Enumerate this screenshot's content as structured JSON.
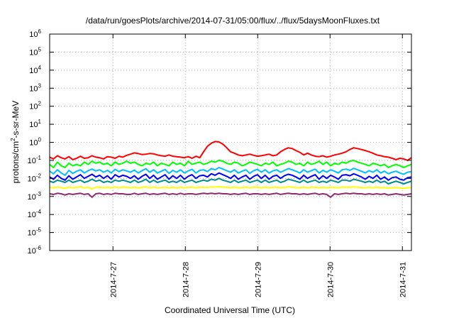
{
  "chart_data": {
    "type": "line",
    "title": "/data/run/goesPlots/archive/2014-07-31/05:00/flux/../flux/5daysMoonFluxes.txt",
    "xlabel": "Coordinated Universal Time (UTC)",
    "ylabel": {
      "prefix": "protons/cm",
      "sup": "2",
      "suffix": "-s-sr-MeV"
    },
    "yscale": "log",
    "ylim": [
      1e-06,
      1000000.0
    ],
    "y_ticks": [
      {
        "base": "10",
        "exp": "-6",
        "value": 1e-06
      },
      {
        "base": "10",
        "exp": "-5",
        "value": 1e-05
      },
      {
        "base": "10",
        "exp": "-4",
        "value": 0.0001
      },
      {
        "base": "10",
        "exp": "-3",
        "value": 0.001
      },
      {
        "base": "10",
        "exp": "-2",
        "value": 0.01
      },
      {
        "base": "10",
        "exp": "-1",
        "value": 0.1
      },
      {
        "base": "10",
        "exp": "0",
        "value": 1
      },
      {
        "base": "10",
        "exp": "1",
        "value": 10
      },
      {
        "base": "10",
        "exp": "2",
        "value": 100
      },
      {
        "base": "10",
        "exp": "3",
        "value": 1000
      },
      {
        "base": "10",
        "exp": "4",
        "value": 10000
      },
      {
        "base": "10",
        "exp": "5",
        "value": 100000
      },
      {
        "base": "10",
        "exp": "6",
        "value": 1000000
      }
    ],
    "xlim": [
      "2014-07-26 03:00",
      "2014-07-31 03:00"
    ],
    "x_ticks": [
      "2014-7-27",
      "2014-7-28",
      "2014-7-29",
      "2014-7-30",
      "2014-7-31"
    ],
    "grid": true,
    "series": [
      {
        "color": "#ff0000",
        "values": [
          0.15,
          0.12,
          0.18,
          0.14,
          0.12,
          0.16,
          0.11,
          0.13,
          0.17,
          0.13,
          0.14,
          0.18,
          0.15,
          0.14,
          0.12,
          0.16,
          0.15,
          0.13,
          0.17,
          0.15,
          0.19,
          0.22,
          0.26,
          0.24,
          0.21,
          0.22,
          0.24,
          0.23,
          0.2,
          0.18,
          0.17,
          0.2,
          0.17,
          0.16,
          0.15,
          0.14,
          0.16,
          0.13,
          0.17,
          0.14,
          0.3,
          0.6,
          0.9,
          1.1,
          1.05,
          0.8,
          0.5,
          0.3,
          0.25,
          0.2,
          0.18,
          0.2,
          0.22,
          0.19,
          0.17,
          0.18,
          0.2,
          0.22,
          0.18,
          0.2,
          0.3,
          0.4,
          0.5,
          0.45,
          0.35,
          0.28,
          0.2,
          0.25,
          0.2,
          0.17,
          0.16,
          0.18,
          0.15,
          0.17,
          0.2,
          0.22,
          0.25,
          0.3,
          0.4,
          0.5,
          0.45,
          0.4,
          0.35,
          0.3,
          0.25,
          0.2,
          0.18,
          0.16,
          0.15,
          0.13,
          0.11,
          0.13,
          0.12,
          0.1,
          0.14
        ]
      },
      {
        "color": "#00ff00",
        "values": [
          0.06,
          0.04,
          0.08,
          0.05,
          0.04,
          0.07,
          0.05,
          0.06,
          0.05,
          0.08,
          0.06,
          0.09,
          0.07,
          0.08,
          0.06,
          0.07,
          0.05,
          0.08,
          0.06,
          0.07,
          0.09,
          0.07,
          0.08,
          0.06,
          0.05,
          0.07,
          0.06,
          0.08,
          0.05,
          0.07,
          0.06,
          0.05,
          0.08,
          0.06,
          0.07,
          0.05,
          0.09,
          0.06,
          0.07,
          0.08,
          0.06,
          0.07,
          0.09,
          0.08,
          0.1,
          0.09,
          0.07,
          0.06,
          0.08,
          0.07,
          0.05,
          0.06,
          0.08,
          0.07,
          0.06,
          0.05,
          0.07,
          0.06,
          0.08,
          0.05,
          0.06,
          0.07,
          0.09,
          0.08,
          0.06,
          0.07,
          0.05,
          0.08,
          0.06,
          0.07,
          0.09,
          0.06,
          0.08,
          0.05,
          0.07,
          0.06,
          0.08,
          0.07,
          0.09,
          0.1,
          0.08,
          0.07,
          0.06,
          0.05,
          0.07,
          0.06,
          0.05,
          0.06,
          0.04,
          0.05,
          0.06,
          0.05,
          0.04,
          0.05,
          0.06
        ]
      },
      {
        "color": "#00c0ff",
        "values": [
          0.025,
          0.018,
          0.03,
          0.02,
          0.015,
          0.028,
          0.019,
          0.025,
          0.03,
          0.02,
          0.027,
          0.033,
          0.026,
          0.03,
          0.022,
          0.028,
          0.02,
          0.032,
          0.024,
          0.03,
          0.026,
          0.022,
          0.029,
          0.02,
          0.027,
          0.034,
          0.022,
          0.03,
          0.02,
          0.025,
          0.031,
          0.019,
          0.028,
          0.022,
          0.03,
          0.02,
          0.026,
          0.032,
          0.02,
          0.028,
          0.03,
          0.024,
          0.035,
          0.03,
          0.04,
          0.033,
          0.027,
          0.022,
          0.03,
          0.02,
          0.025,
          0.03,
          0.019,
          0.027,
          0.032,
          0.022,
          0.03,
          0.02,
          0.026,
          0.03,
          0.022,
          0.028,
          0.035,
          0.03,
          0.025,
          0.02,
          0.03,
          0.022,
          0.027,
          0.033,
          0.02,
          0.028,
          0.022,
          0.03,
          0.025,
          0.02,
          0.03,
          0.033,
          0.028,
          0.036,
          0.03,
          0.025,
          0.02,
          0.027,
          0.022,
          0.03,
          0.02,
          0.025,
          0.018,
          0.022,
          0.025,
          0.02,
          0.017,
          0.022,
          0.024
        ]
      },
      {
        "color": "#0000ff",
        "values": [
          0.012,
          0.009,
          0.015,
          0.01,
          0.008,
          0.014,
          0.009,
          0.012,
          0.016,
          0.01,
          0.013,
          0.017,
          0.012,
          0.015,
          0.01,
          0.014,
          0.009,
          0.016,
          0.012,
          0.015,
          0.013,
          0.01,
          0.014,
          0.009,
          0.013,
          0.017,
          0.01,
          0.015,
          0.009,
          0.012,
          0.016,
          0.009,
          0.014,
          0.01,
          0.015,
          0.009,
          0.013,
          0.016,
          0.01,
          0.014,
          0.015,
          0.012,
          0.018,
          0.015,
          0.02,
          0.016,
          0.013,
          0.01,
          0.015,
          0.009,
          0.012,
          0.015,
          0.009,
          0.013,
          0.016,
          0.01,
          0.015,
          0.009,
          0.013,
          0.015,
          0.01,
          0.014,
          0.017,
          0.015,
          0.012,
          0.009,
          0.015,
          0.01,
          0.013,
          0.016,
          0.009,
          0.014,
          0.01,
          0.015,
          0.012,
          0.009,
          0.015,
          0.016,
          0.014,
          0.018,
          0.015,
          0.012,
          0.009,
          0.013,
          0.01,
          0.015,
          0.009,
          0.012,
          0.008,
          0.011,
          0.012,
          0.009,
          0.008,
          0.011,
          0.012
        ]
      },
      {
        "color": "#008b8b",
        "values": [
          0.007,
          0.006,
          0.008,
          0.007,
          0.006,
          0.008,
          0.006,
          0.007,
          0.008,
          0.006,
          0.007,
          0.009,
          0.007,
          0.008,
          0.006,
          0.007,
          0.006,
          0.008,
          0.007,
          0.008,
          0.007,
          0.006,
          0.008,
          0.006,
          0.007,
          0.009,
          0.006,
          0.008,
          0.006,
          0.007,
          0.008,
          0.006,
          0.007,
          0.006,
          0.008,
          0.006,
          0.007,
          0.008,
          0.006,
          0.007,
          0.008,
          0.007,
          0.009,
          0.008,
          0.01,
          0.008,
          0.007,
          0.006,
          0.008,
          0.006,
          0.007,
          0.008,
          0.006,
          0.007,
          0.008,
          0.006,
          0.008,
          0.006,
          0.007,
          0.008,
          0.006,
          0.007,
          0.009,
          0.008,
          0.007,
          0.006,
          0.008,
          0.006,
          0.007,
          0.008,
          0.006,
          0.007,
          0.006,
          0.008,
          0.007,
          0.006,
          0.008,
          0.008,
          0.007,
          0.009,
          0.008,
          0.007,
          0.006,
          0.007,
          0.006,
          0.008,
          0.006,
          0.007,
          0.005,
          0.006,
          0.007,
          0.006,
          0.005,
          0.006,
          0.007
        ]
      },
      {
        "color": "#ffff00",
        "values": [
          0.0032,
          0.003,
          0.0033,
          0.0031,
          0.0028,
          0.0033,
          0.003,
          0.0032,
          0.0034,
          0.003,
          0.0032,
          0.0026,
          0.0032,
          0.0033,
          0.003,
          0.0032,
          0.003,
          0.0034,
          0.0031,
          0.0033,
          0.0032,
          0.003,
          0.0033,
          0.0029,
          0.0032,
          0.0034,
          0.003,
          0.0033,
          0.003,
          0.0031,
          0.0033,
          0.003,
          0.0032,
          0.003,
          0.0033,
          0.003,
          0.0032,
          0.0033,
          0.003,
          0.0032,
          0.0033,
          0.0031,
          0.0034,
          0.0033,
          0.0035,
          0.0033,
          0.0032,
          0.003,
          0.0033,
          0.003,
          0.0031,
          0.0033,
          0.003,
          0.0032,
          0.0033,
          0.003,
          0.0033,
          0.003,
          0.0032,
          0.0033,
          0.003,
          0.0032,
          0.0034,
          0.0033,
          0.0031,
          0.003,
          0.0033,
          0.003,
          0.0032,
          0.0033,
          0.003,
          0.0032,
          0.003,
          0.0033,
          0.0031,
          0.003,
          0.0033,
          0.0033,
          0.0032,
          0.0034,
          0.0033,
          0.0031,
          0.003,
          0.0032,
          0.003,
          0.0033,
          0.003,
          0.0031,
          0.0029,
          0.003,
          0.0031,
          0.003,
          0.0028,
          0.003,
          0.0031
        ]
      },
      {
        "color": "#8b2c6e",
        "values": [
          0.0014,
          0.0013,
          0.0015,
          0.0014,
          0.0012,
          0.0014,
          0.0013,
          0.0014,
          0.0015,
          0.0013,
          0.0014,
          0.0009,
          0.0014,
          0.0015,
          0.0013,
          0.0014,
          0.0013,
          0.0015,
          0.0014,
          0.0014,
          0.0013,
          0.0013,
          0.0015,
          0.0013,
          0.0014,
          0.0015,
          0.0013,
          0.0014,
          0.0013,
          0.0014,
          0.0015,
          0.0013,
          0.0014,
          0.0013,
          0.0015,
          0.0013,
          0.0014,
          0.0014,
          0.0013,
          0.0014,
          0.0015,
          0.0014,
          0.0015,
          0.0014,
          0.0015,
          0.0014,
          0.0014,
          0.0013,
          0.0014,
          0.0013,
          0.0014,
          0.0015,
          0.0013,
          0.0014,
          0.0014,
          0.0013,
          0.0014,
          0.0013,
          0.0014,
          0.0015,
          0.0013,
          0.0014,
          0.0015,
          0.0014,
          0.0014,
          0.0013,
          0.0014,
          0.0013,
          0.0014,
          0.0015,
          0.0013,
          0.0014,
          0.0013,
          0.0009,
          0.0014,
          0.0013,
          0.0014,
          0.0015,
          0.0014,
          0.0015,
          0.0014,
          0.0014,
          0.0013,
          0.0014,
          0.0013,
          0.0014,
          0.0013,
          0.0014,
          0.0012,
          0.0013,
          0.0014,
          0.0013,
          0.0012,
          0.0013,
          0.0014
        ]
      }
    ]
  }
}
